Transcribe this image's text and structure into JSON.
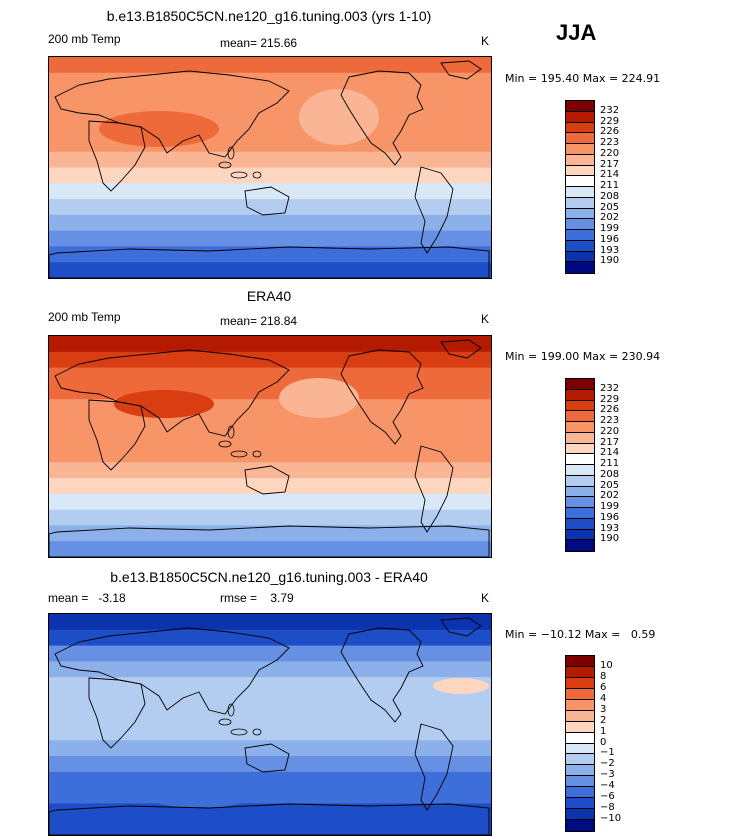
{
  "season": "JJA",
  "panels": [
    {
      "title": "b.e13.B1850C5CN.ne120_g16.tuning.003 (yrs 1-10)",
      "left_label": "200 mb Temp",
      "center_label": "mean= 215.66",
      "right_label": "K",
      "minmax": "Min = 195.40 Max = 224.91",
      "colors": [
        "#7d0000",
        "#b31a00",
        "#d93d12",
        "#ef6a3a",
        "#f79468",
        "#fab595",
        "#fdd6c0",
        "#ffffff",
        "#d8e8f7",
        "#b3cdf0",
        "#8cb0ea",
        "#6590e3",
        "#3e6ed9",
        "#1e4ec7",
        "#0c33ae",
        "#000a80"
      ],
      "ticks": [
        "232",
        "229",
        "226",
        "223",
        "220",
        "217",
        "214",
        "211",
        "208",
        "205",
        "202",
        "199",
        "196",
        "193",
        "190"
      ],
      "bands": [
        "#ef6a3a",
        "#f79468",
        "#f79468",
        "#f79468",
        "#f79468",
        "#f79468",
        "#fab595",
        "#fdd6c0",
        "#d8e8f7",
        "#b3cdf0",
        "#8cb0ea",
        "#6590e3",
        "#3e6ed9",
        "#1e4ec7"
      ]
    },
    {
      "title": "ERA40",
      "left_label": "200 mb Temp",
      "center_label": "mean= 218.84",
      "right_label": "K",
      "minmax": "Min = 199.00 Max = 230.94",
      "colors": [
        "#7d0000",
        "#b31a00",
        "#d93d12",
        "#ef6a3a",
        "#f79468",
        "#fab595",
        "#fdd6c0",
        "#ffffff",
        "#d8e8f7",
        "#b3cdf0",
        "#8cb0ea",
        "#6590e3",
        "#3e6ed9",
        "#1e4ec7",
        "#0c33ae",
        "#000a80"
      ],
      "ticks": [
        "232",
        "229",
        "226",
        "223",
        "220",
        "217",
        "214",
        "211",
        "208",
        "205",
        "202",
        "199",
        "196",
        "193",
        "190"
      ],
      "bands": [
        "#b31a00",
        "#d93d12",
        "#ef6a3a",
        "#ef6a3a",
        "#f79468",
        "#f79468",
        "#f79468",
        "#f79468",
        "#fab595",
        "#fdd6c0",
        "#d8e8f7",
        "#b3cdf0",
        "#8cb0ea",
        "#6590e3"
      ]
    },
    {
      "title": "b.e13.B1850C5CN.ne120_g16.tuning.003 - ERA40",
      "left_label": "mean =   -3.18",
      "center_label": "rmse =    3.79",
      "right_label": "K",
      "minmax": "Min = −10.12 Max =   0.59",
      "colors": [
        "#7d0000",
        "#b31a00",
        "#d93d12",
        "#ef6a3a",
        "#f79468",
        "#fab595",
        "#fdd6c0",
        "#ffffff",
        "#d8e8f7",
        "#b3cdf0",
        "#8cb0ea",
        "#6590e3",
        "#3e6ed9",
        "#1e4ec7",
        "#0c33ae",
        "#000a80"
      ],
      "ticks": [
        "10",
        "8",
        "6",
        "4",
        "3",
        "2",
        "1",
        "0",
        "−1",
        "−2",
        "−3",
        "−4",
        "−6",
        "−8",
        "−10"
      ],
      "bands": [
        "#0c33ae",
        "#1e4ec7",
        "#6590e3",
        "#8cb0ea",
        "#b3cdf0",
        "#b3cdf0",
        "#b3cdf0",
        "#b3cdf0",
        "#8cb0ea",
        "#6590e3",
        "#3e6ed9",
        "#3e6ed9",
        "#1e4ec7",
        "#1e4ec7"
      ]
    }
  ]
}
